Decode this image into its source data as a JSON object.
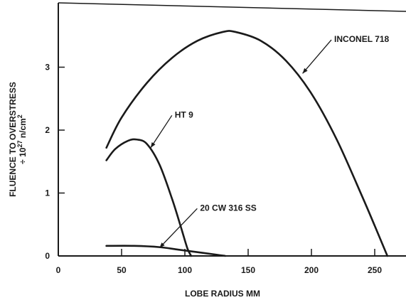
{
  "chart_data": {
    "type": "line",
    "title": "",
    "xlabel": "LOBE RADIUS MM",
    "ylabel_line1": "FLUENCE TO OVERSTRESS",
    "ylabel_line2_prefix": "÷ 10",
    "ylabel_line2_exp": "27",
    "ylabel_line2_unit": " n/cm",
    "ylabel_line2_unit_exp": "2",
    "xlim": [
      0,
      275
    ],
    "ylim": [
      0,
      4
    ],
    "x_ticks": [
      0,
      50,
      100,
      150,
      200,
      250
    ],
    "x_tick_labels": [
      "0",
      "50",
      "100",
      "150",
      "200",
      "250"
    ],
    "y_ticks": [
      0,
      1,
      2,
      3
    ],
    "y_tick_labels": [
      "0",
      "1",
      "2",
      "3"
    ],
    "grid": false,
    "legend": "none",
    "line_color": "#1a1a1a",
    "series": [
      {
        "name": "INCONEL 718",
        "label": "INCONEL 718",
        "x": [
          38,
          50,
          70,
          90,
          110,
          130,
          140,
          160,
          180,
          200,
          220,
          240,
          250,
          260
        ],
        "y": [
          1.72,
          2.2,
          2.75,
          3.15,
          3.42,
          3.56,
          3.56,
          3.42,
          3.1,
          2.58,
          1.85,
          0.95,
          0.48,
          0.0
        ],
        "label_x": 218,
        "label_y": 3.4,
        "arrow_to": [
          193,
          2.9
        ]
      },
      {
        "name": "HT 9",
        "label": "HT 9",
        "x": [
          38,
          45,
          55,
          62,
          70,
          80,
          90,
          97,
          102,
          105
        ],
        "y": [
          1.52,
          1.7,
          1.83,
          1.85,
          1.78,
          1.45,
          0.9,
          0.45,
          0.12,
          0.0
        ],
        "label_x": 92,
        "label_y": 2.2,
        "arrow_to": [
          73,
          1.72
        ]
      },
      {
        "name": "20 CW 316 SS",
        "label": "20 CW 316 SS",
        "x": [
          38,
          60,
          80,
          95,
          110,
          125,
          132
        ],
        "y": [
          0.16,
          0.16,
          0.14,
          0.1,
          0.06,
          0.02,
          0.0
        ],
        "label_x": 112,
        "label_y": 0.72,
        "arrow_to": [
          80,
          0.13
        ]
      }
    ]
  }
}
